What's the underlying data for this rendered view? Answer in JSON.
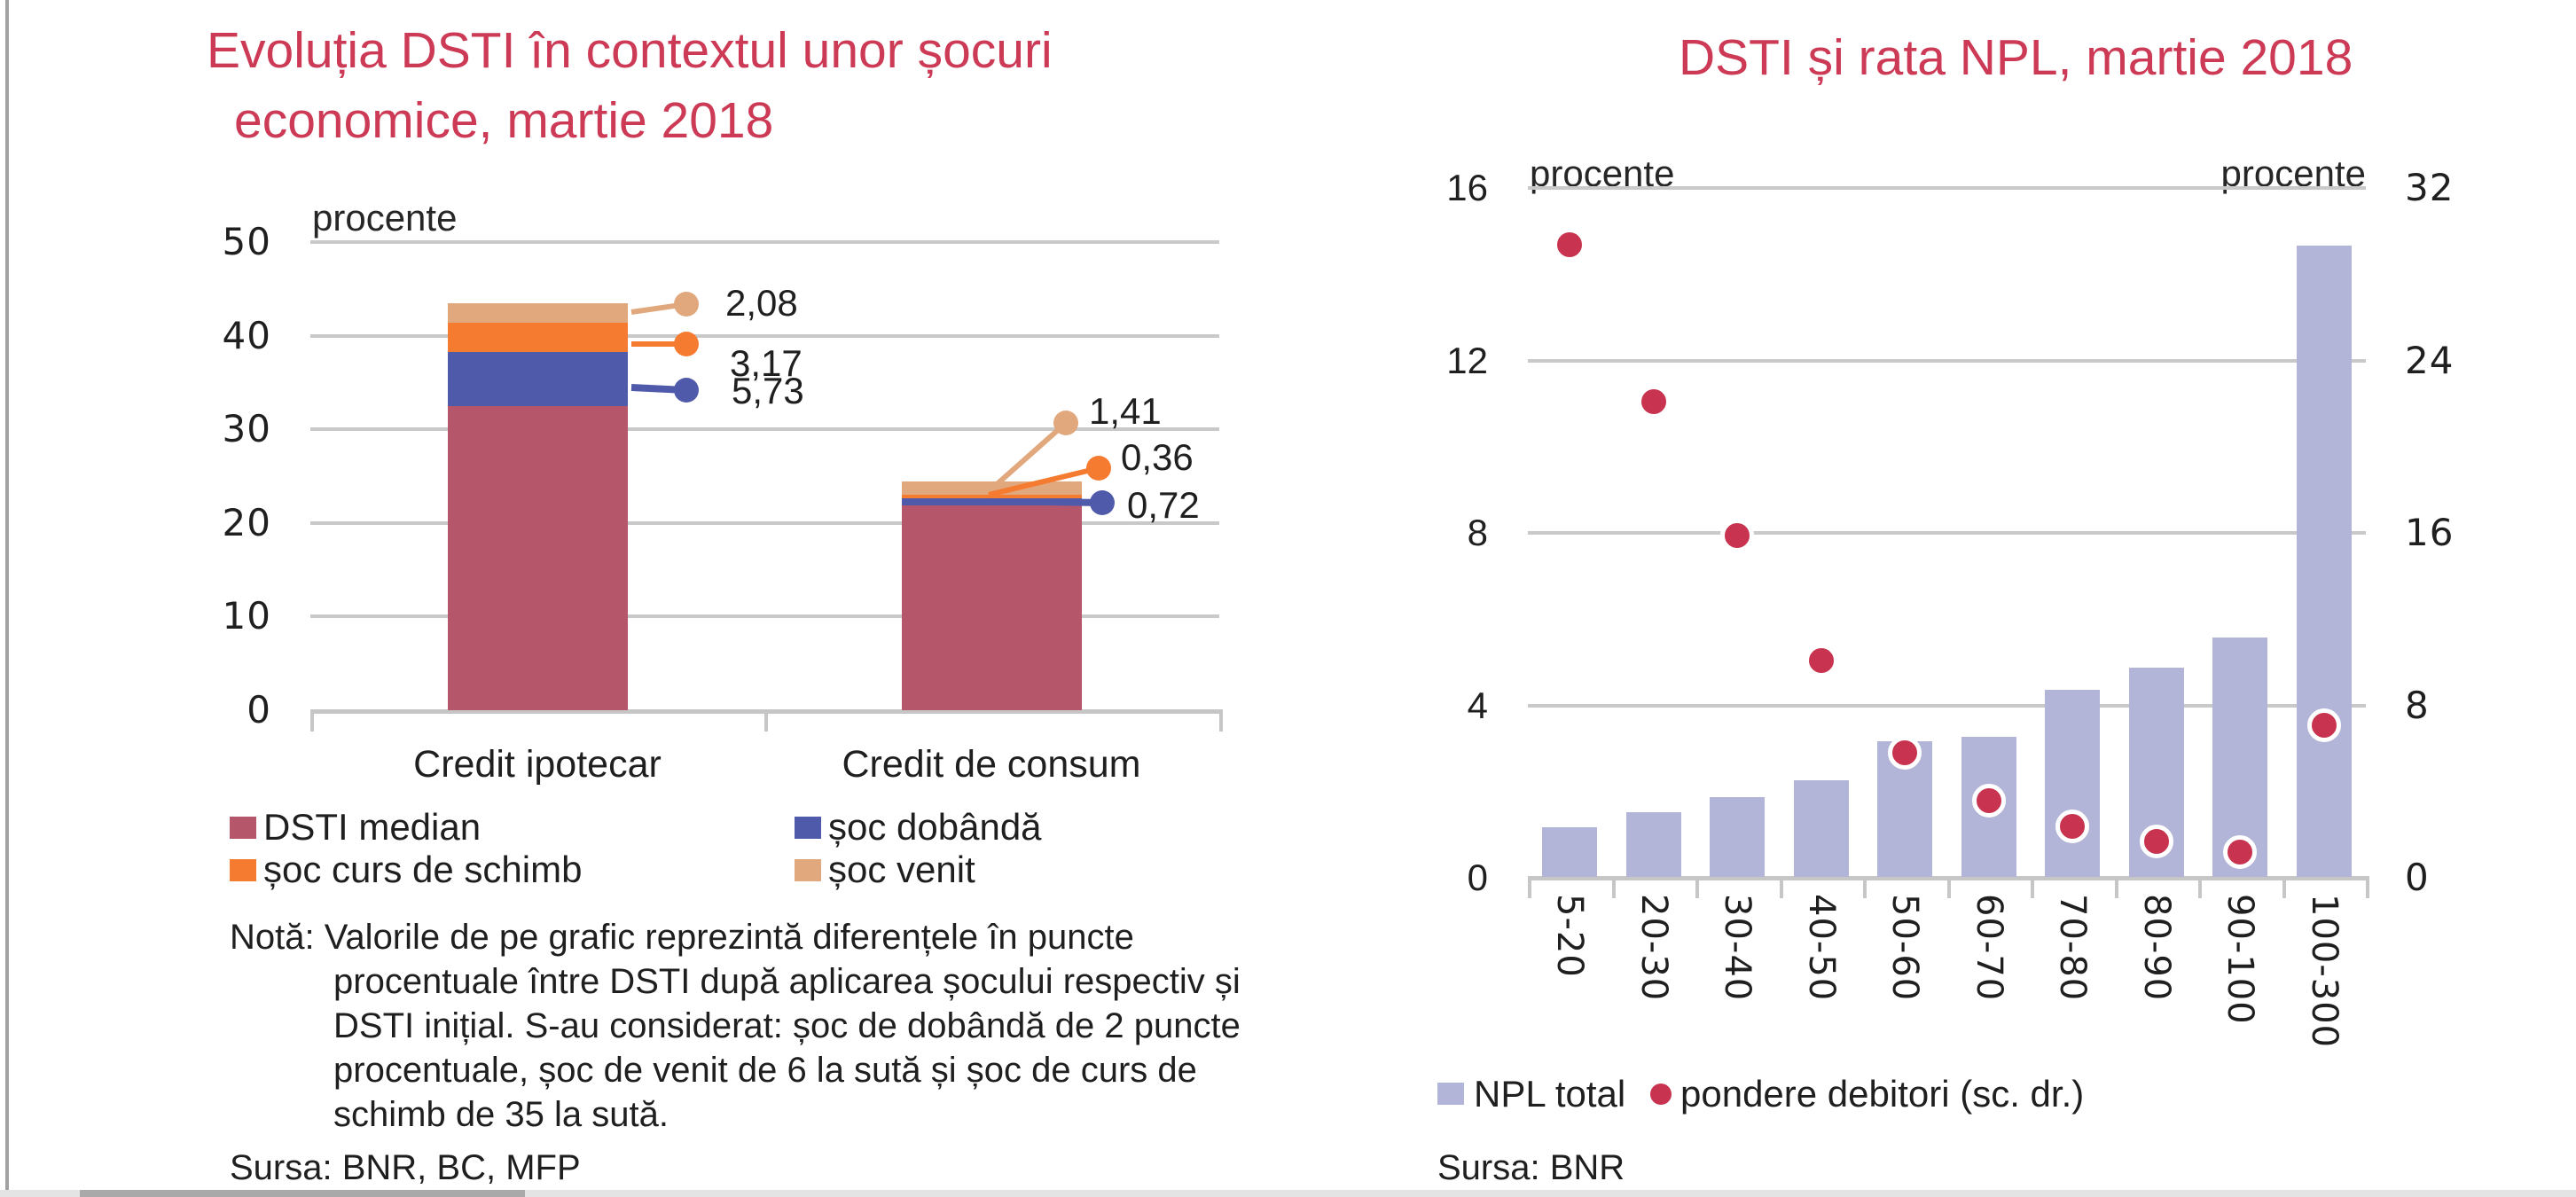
{
  "page": {
    "background": "#ffffff",
    "title_color": "#cc3a56",
    "grid_color": "#c9c9c9",
    "axis_color": "#c6c6c6",
    "text_color": "#1f1f1f"
  },
  "chart_data": [
    {
      "type": "bar",
      "subtype": "stacked-bar",
      "title": "Evoluția DSTI în contextul unor șocuri economice, martie 2018",
      "title_lines": [
        "Evoluția DSTI în contextul unor șocuri",
        "economice, martie 2018"
      ],
      "unit": "procente",
      "categories": [
        "Credit ipotecar",
        "Credit de consum"
      ],
      "series": [
        {
          "name": "DSTI median",
          "color": "#b5566b",
          "values": [
            32.5,
            21.9
          ]
        },
        {
          "name": "șoc dobândă",
          "color": "#4f5aab",
          "values": [
            5.73,
            0.72
          ]
        },
        {
          "name": "șoc curs de schimb",
          "color": "#f57b31",
          "values": [
            3.17,
            0.36
          ]
        },
        {
          "name": "șoc venit",
          "color": "#e2a87d",
          "values": [
            2.08,
            1.41
          ]
        }
      ],
      "data_labels": [
        [
          "2,08",
          "3,17",
          "5,73"
        ],
        [
          "1,41",
          "0,36",
          "0,72"
        ]
      ],
      "ylim": [
        0,
        50
      ],
      "y_ticks": [
        50,
        40,
        30,
        20,
        10,
        0
      ],
      "grid": "horizontal",
      "legend_position": "bottom",
      "note_lines": [
        "Notă: Valorile de pe grafic reprezintă diferențele în puncte",
        "procentuale între DSTI după aplicarea șocului respectiv și",
        "DSTI inițial. S-au considerat: șoc de dobândă de 2 puncte",
        "procentuale, șoc de venit de 6 la sută și șoc de curs de",
        "schimb de 35 la sută.",
        ""
      ],
      "source": "Sursa: BNR, BC, MFP"
    },
    {
      "type": "bar",
      "subtype": "bar-plus-scatter",
      "title": "DSTI și rata NPL, martie 2018",
      "categories": [
        "5-20",
        "20-30",
        "30-40",
        "40-50",
        "50-60",
        "60-70",
        "70-80",
        "80-90",
        "90-100",
        "100-300"
      ],
      "series": [
        {
          "name": "NPL total",
          "type": "bar",
          "axis": "left",
          "color": "#b3b5d8",
          "values": [
            1.15,
            1.5,
            1.85,
            2.25,
            3.15,
            3.25,
            4.35,
            4.85,
            5.55,
            14.65
          ]
        },
        {
          "name": "pondere debitori (sc. dr.)",
          "type": "scatter",
          "axis": "right",
          "color": "#c8334f",
          "values": [
            29.4,
            22.1,
            15.9,
            10.1,
            5.8,
            3.6,
            2.4,
            1.7,
            1.2,
            7.1
          ]
        }
      ],
      "left_axis": {
        "unit": "procente",
        "ticks": [
          16,
          12,
          8,
          4,
          0
        ],
        "range": [
          0,
          16
        ]
      },
      "right_axis": {
        "unit": "procente",
        "ticks": [
          32,
          24,
          16,
          8,
          0
        ],
        "range": [
          0,
          32
        ]
      },
      "grid": "horizontal",
      "legend_position": "bottom",
      "source": "Sursa: BNR"
    }
  ]
}
